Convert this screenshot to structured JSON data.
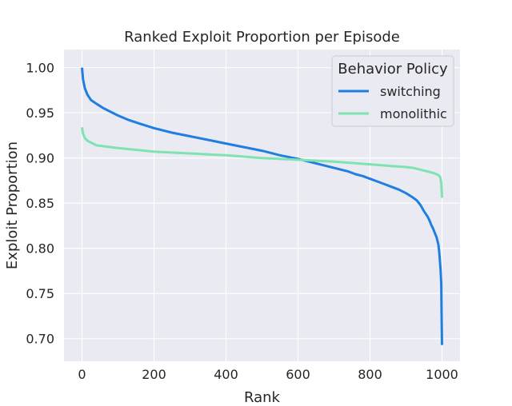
{
  "chart_data": {
    "type": "line",
    "title": "Ranked Exploit Proportion per Episode",
    "xlabel": "Rank",
    "ylabel": "Exploit Proportion",
    "xlim": [
      -50,
      1050
    ],
    "ylim": [
      0.675,
      1.02
    ],
    "xticks": [
      0,
      200,
      400,
      600,
      800,
      1000
    ],
    "yticks": [
      0.7,
      0.75,
      0.8,
      0.85,
      0.9,
      0.95,
      1.0
    ],
    "xtick_labels": [
      "0",
      "200",
      "400",
      "600",
      "800",
      "1000"
    ],
    "ytick_labels": [
      "0.70",
      "0.75",
      "0.80",
      "0.85",
      "0.90",
      "0.95",
      "1.00"
    ],
    "grid": true,
    "legend": {
      "title": "Behavior Policy",
      "placement": "top-right"
    },
    "series": [
      {
        "name": "switching",
        "color": "#1f7ee0",
        "x": [
          0,
          3,
          8,
          15,
          25,
          40,
          60,
          80,
          100,
          130,
          160,
          200,
          250,
          300,
          350,
          400,
          450,
          500,
          550,
          600,
          620,
          640,
          660,
          680,
          700,
          720,
          740,
          760,
          780,
          800,
          820,
          840,
          860,
          880,
          900,
          920,
          930,
          940,
          950,
          960,
          965,
          970,
          975,
          980,
          985,
          990,
          992,
          994,
          996,
          998,
          999,
          1000
        ],
        "y": [
          1.0,
          0.987,
          0.977,
          0.97,
          0.964,
          0.96,
          0.955,
          0.951,
          0.947,
          0.942,
          0.938,
          0.933,
          0.928,
          0.924,
          0.92,
          0.916,
          0.912,
          0.908,
          0.903,
          0.899,
          0.897,
          0.895,
          0.893,
          0.891,
          0.889,
          0.887,
          0.885,
          0.882,
          0.88,
          0.877,
          0.874,
          0.871,
          0.868,
          0.865,
          0.861,
          0.856,
          0.853,
          0.848,
          0.841,
          0.835,
          0.831,
          0.826,
          0.822,
          0.817,
          0.812,
          0.804,
          0.797,
          0.787,
          0.777,
          0.76,
          0.725,
          0.693
        ]
      },
      {
        "name": "monolithic",
        "color": "#7ee3b1",
        "x": [
          0,
          3,
          8,
          15,
          25,
          40,
          60,
          80,
          100,
          150,
          200,
          300,
          400,
          500,
          600,
          700,
          800,
          860,
          900,
          920,
          940,
          960,
          980,
          990,
          995,
          998,
          1000
        ],
        "y": [
          0.934,
          0.927,
          0.922,
          0.919,
          0.917,
          0.914,
          0.913,
          0.912,
          0.911,
          0.909,
          0.907,
          0.905,
          0.903,
          0.9,
          0.898,
          0.896,
          0.893,
          0.891,
          0.89,
          0.889,
          0.887,
          0.885,
          0.883,
          0.881,
          0.879,
          0.872,
          0.856
        ]
      }
    ]
  }
}
